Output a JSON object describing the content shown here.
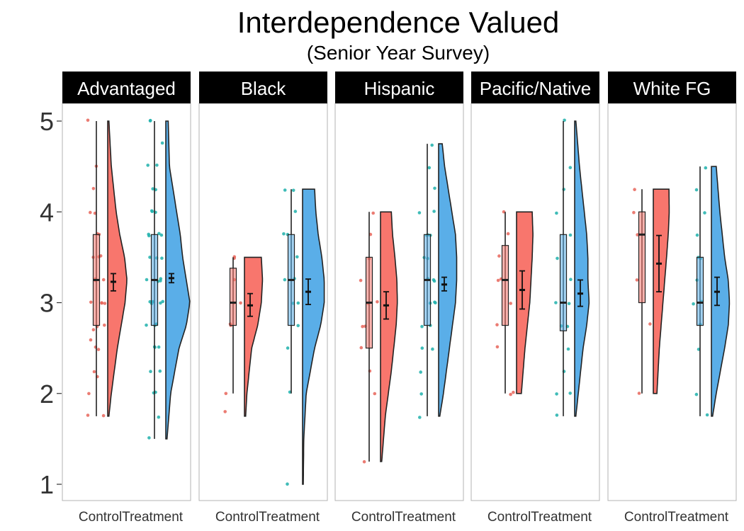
{
  "chart_data": {
    "type": "raincloud",
    "title": "Interdependence Valued",
    "subtitle": "(Senior Year Survey)",
    "facets": [
      "Advantaged",
      "Black",
      "Hispanic",
      "Pacific/Native",
      "White FG"
    ],
    "conditions": [
      "Control",
      "Treatment"
    ],
    "ylim": [
      0.8,
      5.2
    ],
    "yticks": [
      1,
      2,
      3,
      4,
      5
    ],
    "colors": {
      "Control": "#f8766d",
      "Treatment": "#5aaee8",
      "control_points": "#e8655a",
      "treatment_points": "#1fb0ab",
      "strip": "#000000"
    },
    "groups": [
      {
        "facet": "Advantaged",
        "condition": "Control",
        "box": {
          "min": 1.75,
          "q1": 2.75,
          "median": 3.25,
          "q3": 3.75,
          "max": 5.0
        },
        "mean": 3.23,
        "ci": [
          3.13,
          3.32
        ],
        "density": [
          [
            1.75,
            0.05
          ],
          [
            2.0,
            0.15
          ],
          [
            2.5,
            0.4
          ],
          [
            3.0,
            0.72
          ],
          [
            3.25,
            0.8
          ],
          [
            3.5,
            0.7
          ],
          [
            3.75,
            0.5
          ],
          [
            4.0,
            0.35
          ],
          [
            4.5,
            0.15
          ],
          [
            5.0,
            0.05
          ]
        ],
        "points": [
          1.75,
          1.75,
          2.0,
          2.2,
          2.25,
          2.5,
          2.5,
          2.6,
          2.7,
          2.75,
          2.75,
          3.0,
          3.0,
          3.0,
          3.0,
          3.25,
          3.25,
          3.25,
          3.5,
          3.5,
          3.5,
          3.75,
          3.75,
          4.0,
          4.0,
          4.25,
          4.5,
          5.0
        ]
      },
      {
        "facet": "Advantaged",
        "condition": "Treatment",
        "box": {
          "min": 1.5,
          "q1": 2.75,
          "median": 3.25,
          "q3": 3.75,
          "max": 5.0
        },
        "mean": 3.27,
        "ci": [
          3.22,
          3.32
        ],
        "density": [
          [
            1.5,
            0.05
          ],
          [
            2.0,
            0.2
          ],
          [
            2.5,
            0.55
          ],
          [
            2.75,
            0.85
          ],
          [
            3.0,
            1.0
          ],
          [
            3.25,
            0.85
          ],
          [
            3.5,
            0.7
          ],
          [
            3.75,
            0.6
          ],
          [
            4.0,
            0.45
          ],
          [
            4.25,
            0.3
          ],
          [
            4.5,
            0.15
          ],
          [
            5.0,
            0.1
          ]
        ],
        "points": [
          1.5,
          1.75,
          2.0,
          2.0,
          2.25,
          2.25,
          2.5,
          2.5,
          2.5,
          2.75,
          2.75,
          2.75,
          2.75,
          3.0,
          3.0,
          3.0,
          3.0,
          3.0,
          3.0,
          3.25,
          3.25,
          3.25,
          3.25,
          3.5,
          3.5,
          3.5,
          3.75,
          3.75,
          3.75,
          3.75,
          4.0,
          4.0,
          4.0,
          4.25,
          4.25,
          4.5,
          4.5,
          4.75,
          5.0,
          5.0
        ]
      },
      {
        "facet": "Black",
        "condition": "Control",
        "box": {
          "min": 2.0,
          "q1": 2.75,
          "median": 3.0,
          "q3": 3.38,
          "max": 3.5
        },
        "mean": 2.97,
        "ci": [
          2.85,
          3.1
        ],
        "density": [
          [
            1.75,
            0.05
          ],
          [
            2.0,
            0.1
          ],
          [
            2.5,
            0.3
          ],
          [
            2.75,
            0.55
          ],
          [
            3.0,
            0.7
          ],
          [
            3.25,
            0.75
          ],
          [
            3.5,
            0.7
          ]
        ],
        "points": [
          1.8,
          2.0,
          2.75,
          2.75,
          3.0,
          3.0,
          3.25,
          3.5,
          3.5
        ]
      },
      {
        "facet": "Black",
        "condition": "Treatment",
        "box": {
          "min": 2.0,
          "q1": 2.75,
          "median": 3.25,
          "q3": 3.75,
          "max": 4.25
        },
        "mean": 3.12,
        "ci": [
          2.98,
          3.26
        ],
        "density": [
          [
            1.0,
            0.03
          ],
          [
            1.5,
            0.05
          ],
          [
            2.0,
            0.15
          ],
          [
            2.5,
            0.5
          ],
          [
            2.75,
            0.75
          ],
          [
            3.0,
            0.9
          ],
          [
            3.25,
            0.9
          ],
          [
            3.5,
            0.8
          ],
          [
            3.75,
            0.65
          ],
          [
            4.0,
            0.55
          ],
          [
            4.25,
            0.5
          ]
        ],
        "points": [
          1.0,
          2.0,
          2.5,
          2.75,
          3.0,
          3.0,
          3.25,
          3.25,
          3.5,
          3.75,
          3.75,
          4.0,
          4.25,
          4.25
        ]
      },
      {
        "facet": "Hispanic",
        "condition": "Control",
        "box": {
          "min": 1.25,
          "q1": 2.5,
          "median": 3.0,
          "q3": 3.5,
          "max": 4.0
        },
        "mean": 2.97,
        "ci": [
          2.82,
          3.12
        ],
        "density": [
          [
            1.25,
            0.05
          ],
          [
            1.75,
            0.2
          ],
          [
            2.25,
            0.45
          ],
          [
            2.75,
            0.65
          ],
          [
            3.0,
            0.7
          ],
          [
            3.25,
            0.68
          ],
          [
            3.5,
            0.6
          ],
          [
            3.75,
            0.5
          ],
          [
            4.0,
            0.45
          ]
        ],
        "points": [
          1.25,
          2.0,
          2.25,
          2.5,
          2.75,
          2.75,
          3.0,
          3.0,
          3.25,
          3.5,
          3.75,
          4.0
        ]
      },
      {
        "facet": "Hispanic",
        "condition": "Treatment",
        "box": {
          "min": 1.75,
          "q1": 2.75,
          "median": 3.25,
          "q3": 3.75,
          "max": 4.75
        },
        "mean": 3.2,
        "ci": [
          3.13,
          3.28
        ],
        "density": [
          [
            1.75,
            0.05
          ],
          [
            2.0,
            0.2
          ],
          [
            2.5,
            0.45
          ],
          [
            3.0,
            0.7
          ],
          [
            3.25,
            0.75
          ],
          [
            3.5,
            0.75
          ],
          [
            3.75,
            0.7
          ],
          [
            4.0,
            0.55
          ],
          [
            4.25,
            0.4
          ],
          [
            4.5,
            0.25
          ],
          [
            4.75,
            0.15
          ]
        ],
        "points": [
          1.75,
          2.0,
          2.25,
          2.5,
          2.5,
          2.75,
          2.75,
          3.0,
          3.0,
          3.0,
          3.25,
          3.25,
          3.25,
          3.5,
          3.5,
          3.75,
          3.75,
          3.75,
          4.0,
          4.0,
          4.25,
          4.5,
          4.75
        ]
      },
      {
        "facet": "Pacific/Native",
        "condition": "Control",
        "box": {
          "min": 2.0,
          "q1": 2.75,
          "median": 3.25,
          "q3": 3.63,
          "max": 4.0
        },
        "mean": 3.14,
        "ci": [
          2.93,
          3.35
        ],
        "density": [
          [
            2.0,
            0.2
          ],
          [
            2.5,
            0.35
          ],
          [
            2.75,
            0.45
          ],
          [
            3.0,
            0.55
          ],
          [
            3.25,
            0.6
          ],
          [
            3.5,
            0.65
          ],
          [
            3.75,
            0.68
          ],
          [
            4.0,
            0.65
          ]
        ],
        "points": [
          2.0,
          2.0,
          2.5,
          2.75,
          3.0,
          3.25,
          3.25,
          3.5,
          3.75,
          4.0
        ]
      },
      {
        "facet": "Pacific/Native",
        "condition": "Treatment",
        "box": {
          "min": 1.75,
          "q1": 2.69,
          "median": 3.0,
          "q3": 3.75,
          "max": 5.0
        },
        "mean": 3.1,
        "ci": [
          2.96,
          3.25
        ],
        "density": [
          [
            1.75,
            0.05
          ],
          [
            2.0,
            0.15
          ],
          [
            2.5,
            0.35
          ],
          [
            2.75,
            0.5
          ],
          [
            3.0,
            0.6
          ],
          [
            3.25,
            0.55
          ],
          [
            3.5,
            0.55
          ],
          [
            3.75,
            0.5
          ],
          [
            4.0,
            0.4
          ],
          [
            4.25,
            0.3
          ],
          [
            4.5,
            0.2
          ],
          [
            5.0,
            0.05
          ]
        ],
        "points": [
          1.75,
          2.0,
          2.0,
          2.25,
          2.5,
          2.75,
          2.75,
          3.0,
          3.0,
          3.25,
          3.5,
          3.75,
          4.0,
          4.25,
          4.5,
          5.0
        ]
      },
      {
        "facet": "White FG",
        "condition": "Control",
        "box": {
          "min": 2.0,
          "q1": 3.0,
          "median": 3.75,
          "q3": 4.0,
          "max": 4.25
        },
        "mean": 3.43,
        "ci": [
          3.12,
          3.74
        ],
        "density": [
          [
            2.0,
            0.15
          ],
          [
            2.5,
            0.25
          ],
          [
            3.0,
            0.4
          ],
          [
            3.5,
            0.55
          ],
          [
            3.75,
            0.62
          ],
          [
            4.0,
            0.66
          ],
          [
            4.25,
            0.65
          ]
        ],
        "points": [
          2.0,
          2.75,
          3.25,
          3.75,
          4.0,
          4.25
        ]
      },
      {
        "facet": "White FG",
        "condition": "Treatment",
        "box": {
          "min": 1.75,
          "q1": 2.75,
          "median": 3.0,
          "q3": 3.5,
          "max": 4.5
        },
        "mean": 3.12,
        "ci": [
          2.97,
          3.28
        ],
        "density": [
          [
            1.75,
            0.05
          ],
          [
            2.0,
            0.2
          ],
          [
            2.5,
            0.55
          ],
          [
            2.75,
            0.7
          ],
          [
            3.0,
            0.75
          ],
          [
            3.25,
            0.7
          ],
          [
            3.5,
            0.55
          ],
          [
            4.0,
            0.35
          ],
          [
            4.5,
            0.2
          ]
        ],
        "points": [
          1.75,
          2.0,
          2.5,
          2.75,
          3.0,
          3.0,
          3.25,
          3.5,
          3.5,
          3.75,
          4.0,
          4.25,
          4.5
        ]
      }
    ]
  }
}
